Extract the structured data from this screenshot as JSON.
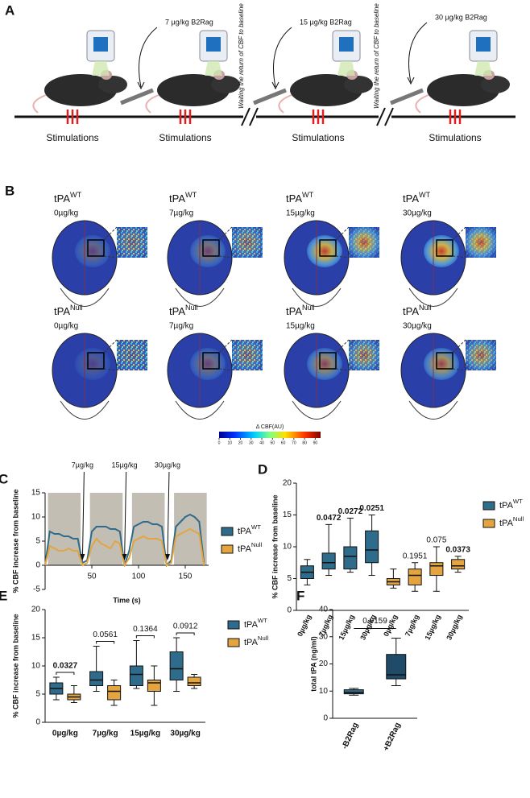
{
  "panel_a": {
    "label": "A",
    "doses": [
      "7 µg/kg B2Rag",
      "15 µg/kg B2Rag",
      "30 µg/kg B2Rag"
    ],
    "waiting_notes": [
      "Waiting the return of CBF to baseline",
      "Waiting the return of CBF to baseline"
    ],
    "stimulations": [
      "Stimulations",
      "Stimulations",
      "Stimulations",
      "Stimulations"
    ]
  },
  "panel_b": {
    "label": "B",
    "images": [
      {
        "genotype": "tPA",
        "superscript": "WT",
        "dose": "0µg/kg"
      },
      {
        "genotype": "tPA",
        "superscript": "WT",
        "dose": "7µg/kg"
      },
      {
        "genotype": "tPA",
        "superscript": "WT",
        "dose": "15µg/kg"
      },
      {
        "genotype": "tPA",
        "superscript": "WT",
        "dose": "30µg/kg"
      },
      {
        "genotype": "tPA",
        "superscript": "Null",
        "dose": "0µg/kg"
      },
      {
        "genotype": "tPA",
        "superscript": "Null",
        "dose": "7µg/kg"
      },
      {
        "genotype": "tPA",
        "superscript": "Null",
        "dose": "15µg/kg"
      },
      {
        "genotype": "tPA",
        "superscript": "Null",
        "dose": "30µg/kg"
      }
    ],
    "colorbar": {
      "title": "Δ CBF(AU)",
      "lim": [
        0,
        95
      ],
      "ticks": [
        0,
        10,
        20,
        30,
        40,
        50,
        60,
        70,
        80,
        90
      ]
    }
  },
  "chart_data": [
    {
      "type": "line",
      "label": "C",
      "xlabel": "Time (s)",
      "ylabel": "% CBF increase from baseline",
      "xlim": [
        0,
        175
      ],
      "xticks": [
        50,
        100,
        150
      ],
      "ylim": [
        -5,
        15
      ],
      "yticks": [
        -5,
        0,
        5,
        10,
        15
      ],
      "stimulation_periods": [
        [
          3,
          38
        ],
        [
          48,
          83
        ],
        [
          93,
          128
        ],
        [
          138,
          173
        ]
      ],
      "annotations": [
        {
          "text": "7µg/kg",
          "x": 40
        },
        {
          "text": "15µg/kg",
          "x": 85
        },
        {
          "text": "30µg/kg",
          "x": 131
        }
      ],
      "x": [
        0,
        5,
        10,
        15,
        20,
        25,
        30,
        35,
        40,
        45,
        50,
        55,
        60,
        65,
        70,
        75,
        80,
        85,
        90,
        95,
        100,
        105,
        110,
        115,
        120,
        125,
        130,
        135,
        140,
        145,
        150,
        155,
        160,
        165,
        170
      ],
      "series": [
        {
          "name": "tPA",
          "superscript": "WT",
          "color": "#2f6b8a",
          "values": [
            0,
            7,
            6.5,
            6.5,
            6,
            6,
            5.5,
            5.5,
            0.5,
            1,
            7,
            8,
            8,
            8,
            7.5,
            7.5,
            7,
            0,
            3,
            8,
            8.5,
            9,
            9,
            8.5,
            8.5,
            8,
            0,
            1,
            8,
            9,
            10,
            10.5,
            10,
            9,
            0.5
          ]
        },
        {
          "name": "tPA",
          "superscript": "Null",
          "color": "#e4a43f",
          "values": [
            0,
            4,
            3.5,
            3,
            3,
            3.5,
            3,
            3,
            0,
            0.5,
            4,
            5.5,
            4.5,
            4,
            3.5,
            5,
            4.5,
            0,
            1.5,
            5,
            5.5,
            6,
            5.5,
            5.5,
            5.5,
            5,
            0,
            0.5,
            6,
            6.5,
            7,
            7.5,
            7,
            6.5,
            0
          ]
        }
      ]
    },
    {
      "type": "box",
      "label": "D",
      "ylabel": "% CBF increase from baseline",
      "ylim": [
        0,
        20
      ],
      "yticks": [
        0,
        5,
        10,
        15,
        20
      ],
      "categories": [
        "0µg/kg",
        "7µg/kg",
        "15µg/kg",
        "30µg/kg"
      ],
      "series": [
        {
          "name": "tPA",
          "superscript": "WT",
          "color": "#2f6b8a",
          "boxes": [
            {
              "min": 4,
              "q1": 5,
              "median": 6,
              "q3": 7,
              "max": 8
            },
            {
              "min": 5.5,
              "q1": 6.5,
              "median": 7.5,
              "q3": 9,
              "max": 13.5
            },
            {
              "min": 6,
              "q1": 6.5,
              "median": 8.5,
              "q3": 10,
              "max": 14.5
            },
            {
              "min": 5.5,
              "q1": 7.5,
              "median": 9.5,
              "q3": 12.5,
              "max": 15
            }
          ],
          "p_labels": [
            null,
            "0.0472",
            "0.0272",
            "0.0251"
          ],
          "p_label_colors": [
            null,
            "#a3262a",
            "#a3262a",
            "#a3262a"
          ]
        },
        {
          "name": "tPA",
          "superscript": "Null",
          "color": "#e4a43f",
          "boxes": [
            {
              "min": 3.5,
              "q1": 4,
              "median": 4.5,
              "q3": 5,
              "max": 6.5
            },
            {
              "min": 3,
              "q1": 4,
              "median": 5.5,
              "q3": 6.5,
              "max": 7.5
            },
            {
              "min": 3,
              "q1": 5.5,
              "median": 7,
              "q3": 7.5,
              "max": 10
            },
            {
              "min": 6,
              "q1": 6.5,
              "median": 7,
              "q3": 8,
              "max": 8.5
            }
          ],
          "p_labels": [
            null,
            "0.1951",
            "0.075",
            "0.0373"
          ],
          "p_label_colors": [
            null,
            "#222222",
            "#222222",
            "#a3262a"
          ]
        }
      ]
    },
    {
      "type": "grouped-box",
      "label": "E",
      "ylabel": "% CBF increase from baseline",
      "ylim": [
        0,
        20
      ],
      "yticks": [
        0,
        5,
        10,
        15,
        20
      ],
      "categories": [
        "0µg/kg",
        "7µg/kg",
        "15µg/kg",
        "30µg/kg"
      ],
      "comparisons": [
        {
          "label": "0.0327",
          "color": "#a3262a"
        },
        {
          "label": "0.0561",
          "color": "#222222"
        },
        {
          "label": "0.1364",
          "color": "#222222"
        },
        {
          "label": "0.0912",
          "color": "#222222"
        }
      ],
      "series": [
        {
          "name": "tPA",
          "superscript": "WT",
          "color": "#2f6b8a",
          "boxes": [
            {
              "min": 4,
              "q1": 5,
              "median": 6,
              "q3": 7,
              "max": 8
            },
            {
              "min": 5.5,
              "q1": 6.5,
              "median": 7.5,
              "q3": 9,
              "max": 13.5
            },
            {
              "min": 6,
              "q1": 6.5,
              "median": 8.5,
              "q3": 10,
              "max": 14.5
            },
            {
              "min": 5.5,
              "q1": 7.5,
              "median": 9.5,
              "q3": 12.5,
              "max": 15
            }
          ]
        },
        {
          "name": "tPA",
          "superscript": "Null",
          "color": "#e4a43f",
          "boxes": [
            {
              "min": 3.5,
              "q1": 4,
              "median": 4.5,
              "q3": 5,
              "max": 6.5
            },
            {
              "min": 3,
              "q1": 4,
              "median": 5.5,
              "q3": 6.5,
              "max": 7.5
            },
            {
              "min": 3,
              "q1": 5.5,
              "median": 7,
              "q3": 7.5,
              "max": 10
            },
            {
              "min": 6,
              "q1": 6.5,
              "median": 7,
              "q3": 8,
              "max": 8.5
            }
          ]
        }
      ]
    },
    {
      "type": "simple-box",
      "label": "F",
      "ylabel": "total tPA (ng/ml)",
      "ylim": [
        0,
        40
      ],
      "yticks": [
        0,
        10,
        20,
        30,
        40
      ],
      "categories": [
        "-B2Rag",
        "+B2Rag"
      ],
      "comparison": "0.0159",
      "colors": [
        "#2f6b8a",
        "#1f4a68"
      ],
      "boxes": [
        {
          "min": 8.5,
          "q1": 9,
          "median": 9.5,
          "q3": 10.5,
          "max": 11
        },
        {
          "min": 12,
          "q1": 14.5,
          "median": 16,
          "q3": 23.5,
          "max": 29.5
        }
      ]
    }
  ]
}
